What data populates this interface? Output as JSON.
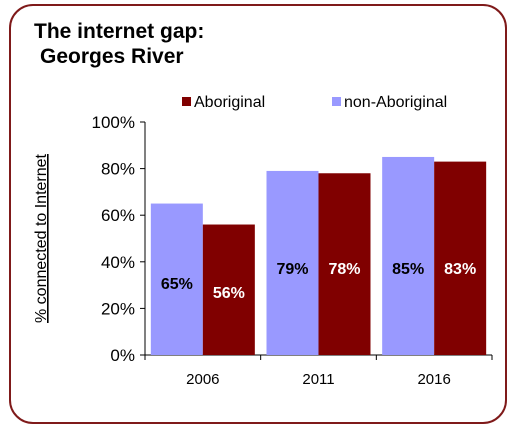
{
  "chart_data": {
    "type": "bar",
    "title_lines": [
      "The internet gap:",
      "Georges River"
    ],
    "categories": [
      "2006",
      "2011",
      "2016"
    ],
    "series": [
      {
        "name": "non-Aboriginal",
        "values": [
          65,
          79,
          85
        ],
        "labels": [
          "65%",
          "79%",
          "85%"
        ],
        "color": "#9999ff"
      },
      {
        "name": "Aboriginal",
        "values": [
          56,
          78,
          83
        ],
        "labels": [
          "56%",
          "78%",
          "83%"
        ],
        "color": "#800000"
      }
    ],
    "legend_order": [
      "Aboriginal",
      "non-Aboriginal"
    ],
    "legend_position": "top",
    "ylabel": "% connected to Internet",
    "ylim": [
      0,
      100
    ],
    "yticks": [
      "0%",
      "20%",
      "40%",
      "60%",
      "80%",
      "100%"
    ],
    "grid": false
  }
}
